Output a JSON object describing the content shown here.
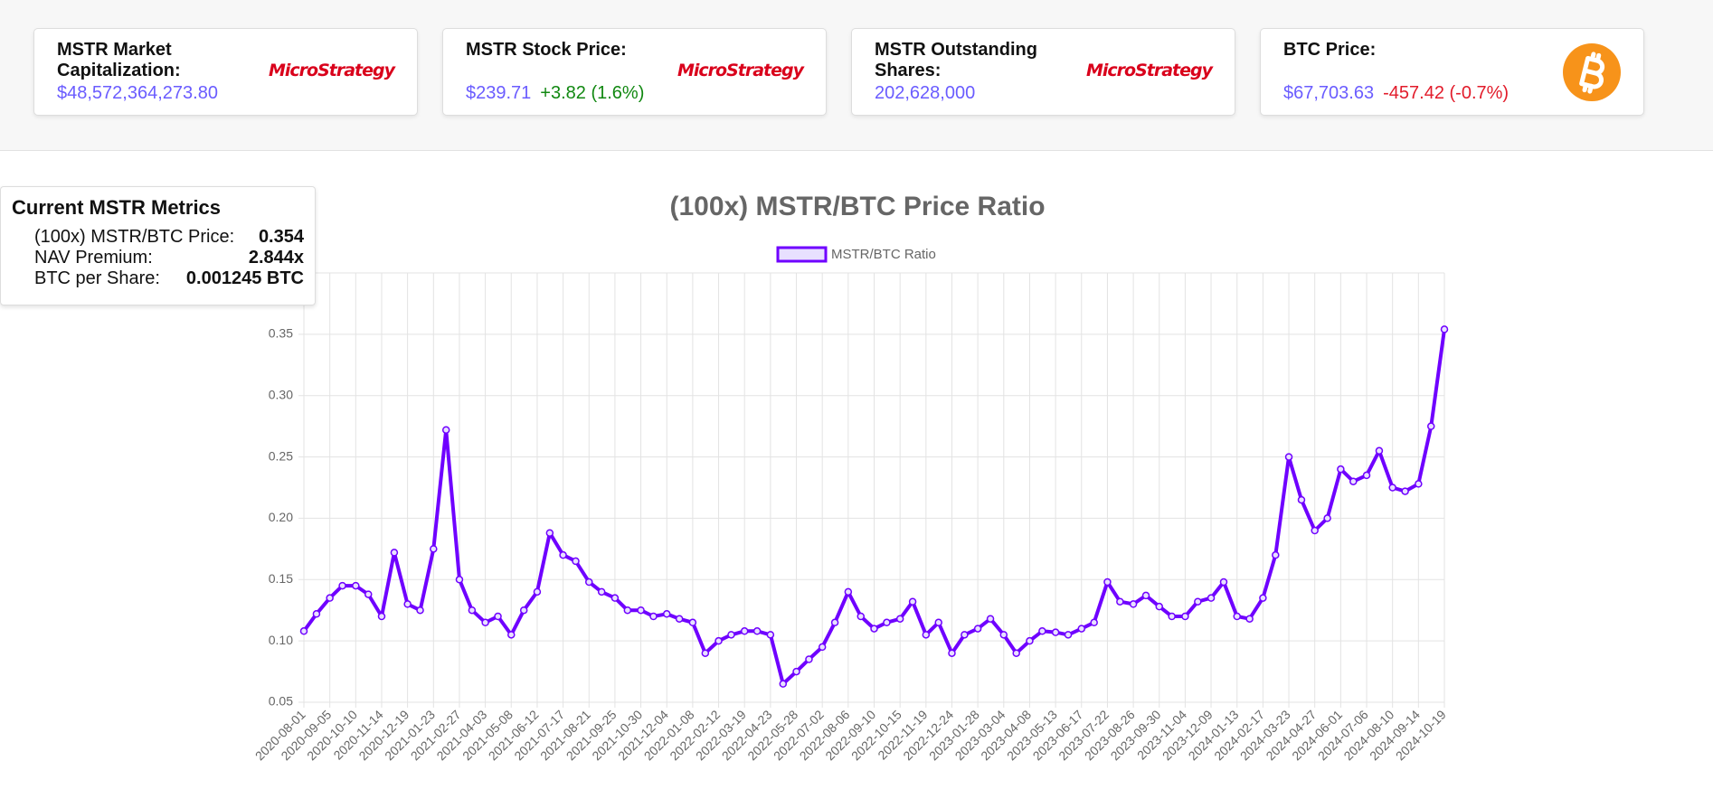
{
  "cards": [
    {
      "title": "MSTR Market Capitalization:",
      "value": "$48,572,364,273.80",
      "logo": "MicroStrategy"
    },
    {
      "title": "MSTR Stock Price:",
      "value": "$239.71",
      "change": "+3.82 (1.6%)",
      "logo": "MicroStrategy"
    },
    {
      "title": "MSTR Outstanding Shares:",
      "value": "202,628,000",
      "logo": "MicroStrategy"
    },
    {
      "title": "BTC Price:",
      "value": "$67,703.63",
      "change": "-457.42 (-0.7%)"
    }
  ],
  "metrics": {
    "title": "Current MSTR Metrics",
    "rows": [
      [
        "(100x) MSTR/BTC Price:",
        "0.354"
      ],
      [
        "NAV Premium:",
        "2.844x"
      ],
      [
        "BTC per Share:",
        "0.001245 BTC"
      ]
    ]
  },
  "chart_data": {
    "type": "line",
    "title": "(100x) MSTR/BTC Price Ratio",
    "x": [
      "2020-08-01",
      "2020-08-18",
      "2020-09-05",
      "2020-09-22",
      "2020-10-10",
      "2020-10-27",
      "2020-11-14",
      "2020-12-01",
      "2020-12-19",
      "2021-01-05",
      "2021-01-23",
      "2021-02-09",
      "2021-02-27",
      "2021-03-16",
      "2021-04-03",
      "2021-04-20",
      "2021-05-08",
      "2021-05-25",
      "2021-06-12",
      "2021-06-29",
      "2021-07-17",
      "2021-08-03",
      "2021-08-21",
      "2021-09-07",
      "2021-09-25",
      "2021-10-12",
      "2021-10-30",
      "2021-11-16",
      "2021-12-04",
      "2021-12-21",
      "2022-01-08",
      "2022-01-25",
      "2022-02-12",
      "2022-03-01",
      "2022-03-19",
      "2022-04-05",
      "2022-04-23",
      "2022-05-10",
      "2022-05-28",
      "2022-06-14",
      "2022-07-02",
      "2022-07-19",
      "2022-08-06",
      "2022-08-23",
      "2022-09-10",
      "2022-09-27",
      "2022-10-15",
      "2022-11-01",
      "2022-11-19",
      "2022-12-06",
      "2022-12-24",
      "2023-01-10",
      "2023-01-28",
      "2023-02-14",
      "2023-03-04",
      "2023-03-21",
      "2023-04-08",
      "2023-04-25",
      "2023-05-13",
      "2023-05-30",
      "2023-06-17",
      "2023-07-04",
      "2023-07-22",
      "2023-08-08",
      "2023-08-26",
      "2023-09-12",
      "2023-09-30",
      "2023-10-17",
      "2023-11-04",
      "2023-11-21",
      "2023-12-09",
      "2023-12-26",
      "2024-01-13",
      "2024-01-30",
      "2024-02-17",
      "2024-03-05",
      "2024-03-23",
      "2024-04-09",
      "2024-04-27",
      "2024-05-14",
      "2024-06-01",
      "2024-06-18",
      "2024-07-06",
      "2024-07-23",
      "2024-08-10",
      "2024-08-27",
      "2024-09-14",
      "2024-10-01",
      "2024-10-19"
    ],
    "series": [
      {
        "name": "MSTR/BTC Ratio",
        "color": "#6f00ff",
        "values": [
          0.108,
          0.122,
          0.135,
          0.145,
          0.145,
          0.138,
          0.12,
          0.172,
          0.13,
          0.125,
          0.175,
          0.272,
          0.15,
          0.125,
          0.115,
          0.12,
          0.105,
          0.125,
          0.14,
          0.188,
          0.17,
          0.165,
          0.148,
          0.14,
          0.135,
          0.125,
          0.125,
          0.12,
          0.122,
          0.118,
          0.115,
          0.09,
          0.1,
          0.105,
          0.108,
          0.108,
          0.105,
          0.065,
          0.075,
          0.085,
          0.095,
          0.115,
          0.14,
          0.12,
          0.11,
          0.115,
          0.118,
          0.132,
          0.105,
          0.115,
          0.09,
          0.105,
          0.11,
          0.118,
          0.105,
          0.09,
          0.1,
          0.108,
          0.107,
          0.105,
          0.11,
          0.115,
          0.148,
          0.132,
          0.13,
          0.137,
          0.128,
          0.12,
          0.12,
          0.132,
          0.135,
          0.148,
          0.12,
          0.118,
          0.135,
          0.17,
          0.25,
          0.215,
          0.19,
          0.2,
          0.24,
          0.23,
          0.235,
          0.255,
          0.225,
          0.222,
          0.228,
          0.275,
          0.354
        ]
      }
    ],
    "xlim": [
      "2020-08-01",
      "2024-10-19"
    ],
    "xticks": [
      "2020-08-01",
      "2020-09-05",
      "2020-10-10",
      "2020-11-14",
      "2020-12-19",
      "2021-01-23",
      "2021-02-27",
      "2021-04-03",
      "2021-05-08",
      "2021-06-12",
      "2021-07-17",
      "2021-08-21",
      "2021-09-25",
      "2021-10-30",
      "2021-12-04",
      "2022-01-08",
      "2022-02-12",
      "2022-03-19",
      "2022-04-23",
      "2022-05-28",
      "2022-07-02",
      "2022-08-06",
      "2022-09-10",
      "2022-10-15",
      "2022-11-19",
      "2022-12-24",
      "2023-01-28",
      "2023-03-04",
      "2023-04-08",
      "2023-05-13",
      "2023-06-17",
      "2023-07-22",
      "2023-08-26",
      "2023-09-30",
      "2023-11-04",
      "2023-12-09",
      "2024-01-13",
      "2024-02-17",
      "2024-03-23",
      "2024-04-27",
      "2024-06-01",
      "2024-07-06",
      "2024-08-10",
      "2024-09-14",
      "2024-10-19"
    ],
    "ylim": [
      0.05,
      0.4
    ],
    "yticks": [
      0.05,
      {
        "value": 0.1,
        "label": "0.10"
      },
      0.15,
      {
        "value": 0.2,
        "label": "0.20"
      },
      0.25,
      {
        "value": 0.3,
        "label": "0.30"
      },
      0.35
    ],
    "grid": true
  }
}
